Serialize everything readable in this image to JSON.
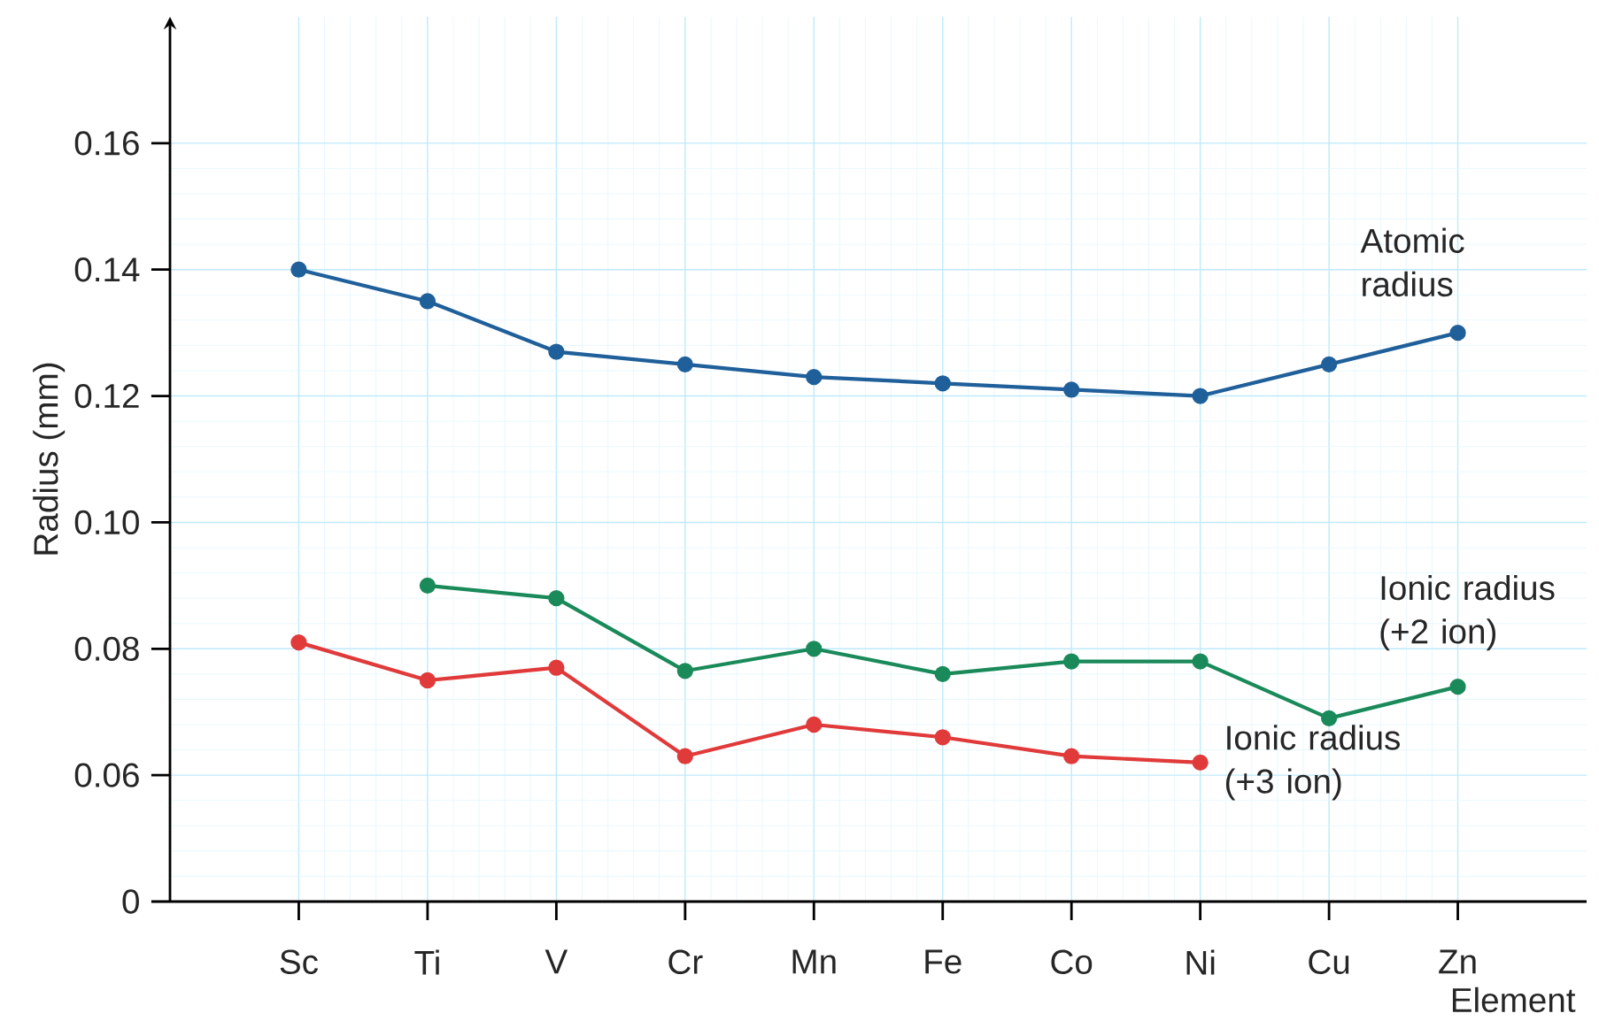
{
  "chart_data": {
    "type": "line",
    "xlabel": "Element",
    "ylabel": "Radius (mm)",
    "categories": [
      "Sc",
      "Ti",
      "V",
      "Cr",
      "Mn",
      "Fe",
      "Co",
      "Ni",
      "Cu",
      "Zn"
    ],
    "series": [
      {
        "name": "Atomic radius",
        "color": "#1f5f9a",
        "values": [
          0.14,
          0.135,
          0.127,
          0.125,
          0.123,
          0.122,
          0.121,
          0.12,
          0.125,
          0.13
        ]
      },
      {
        "name": "Ionic radius (+2 ion)",
        "color": "#1a8a5a",
        "values": [
          null,
          0.09,
          0.088,
          0.0765,
          0.08,
          0.076,
          0.078,
          0.078,
          0.069,
          0.074
        ]
      },
      {
        "name": "Ionic radius (+3 ion)",
        "color": "#e03a3a",
        "values": [
          0.081,
          0.075,
          0.077,
          0.063,
          0.068,
          0.066,
          0.063,
          0.062,
          null,
          null
        ]
      }
    ],
    "ylim": [
      0.04,
      0.18
    ],
    "yticks": [
      {
        "value": 0.04,
        "label": "0"
      },
      {
        "value": 0.06,
        "label": "0.06"
      },
      {
        "value": 0.08,
        "label": "0.08"
      },
      {
        "value": 0.1,
        "label": "0.10"
      },
      {
        "value": 0.12,
        "label": "0.12"
      },
      {
        "value": 0.14,
        "label": "0.14"
      },
      {
        "value": 0.16,
        "label": "0.16"
      }
    ],
    "grid": true,
    "marker": "circle",
    "line_style": "solid",
    "legend": false
  }
}
